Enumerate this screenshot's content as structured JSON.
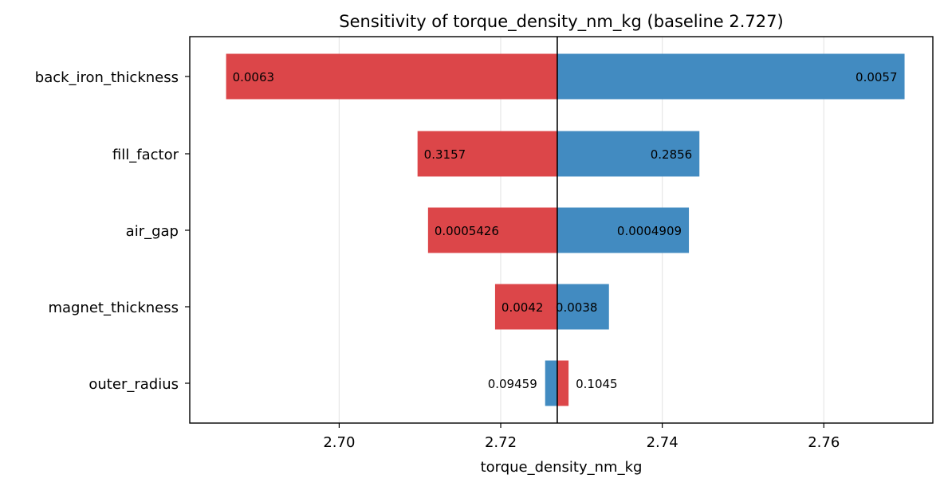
{
  "chart_data": {
    "type": "bar",
    "orientation": "horizontal",
    "title": "Sensitivity of torque_density_nm_kg (baseline 2.727)",
    "xlabel": "torque_density_nm_kg",
    "ylabel": "",
    "baseline": 2.727,
    "xlim": [
      2.6815,
      2.7735
    ],
    "xticks": [
      2.7,
      2.72,
      2.74,
      2.76
    ],
    "xtick_labels": [
      "2.70",
      "2.72",
      "2.74",
      "2.76"
    ],
    "grid": "x",
    "categories": [
      "back_iron_thickness",
      "fill_factor",
      "air_gap",
      "magnet_thickness",
      "outer_radius"
    ],
    "bars": [
      {
        "parameter": "back_iron_thickness",
        "red": {
          "start": 2.686,
          "end": 2.727,
          "label": "0.0063"
        },
        "blue": {
          "start": 2.727,
          "end": 2.77,
          "label": "0.0057"
        }
      },
      {
        "parameter": "fill_factor",
        "red": {
          "start": 2.7097,
          "end": 2.727,
          "label": "0.3157"
        },
        "blue": {
          "start": 2.727,
          "end": 2.7446,
          "label": "0.2856"
        }
      },
      {
        "parameter": "air_gap",
        "red": {
          "start": 2.711,
          "end": 2.727,
          "label": "0.0005426"
        },
        "blue": {
          "start": 2.727,
          "end": 2.7433,
          "label": "0.0004909"
        }
      },
      {
        "parameter": "magnet_thickness",
        "red": {
          "start": 2.7193,
          "end": 2.727,
          "label": "0.0042"
        },
        "blue": {
          "start": 2.727,
          "end": 2.7334,
          "label": "0.0038"
        }
      },
      {
        "parameter": "outer_radius",
        "red": {
          "start": 2.727,
          "end": 2.7284,
          "label": "0.1045"
        },
        "blue": {
          "start": 2.7255,
          "end": 2.727,
          "label": "0.09459"
        }
      }
    ],
    "colors": {
      "red": "#dc4649",
      "blue": "#428bc1"
    }
  }
}
